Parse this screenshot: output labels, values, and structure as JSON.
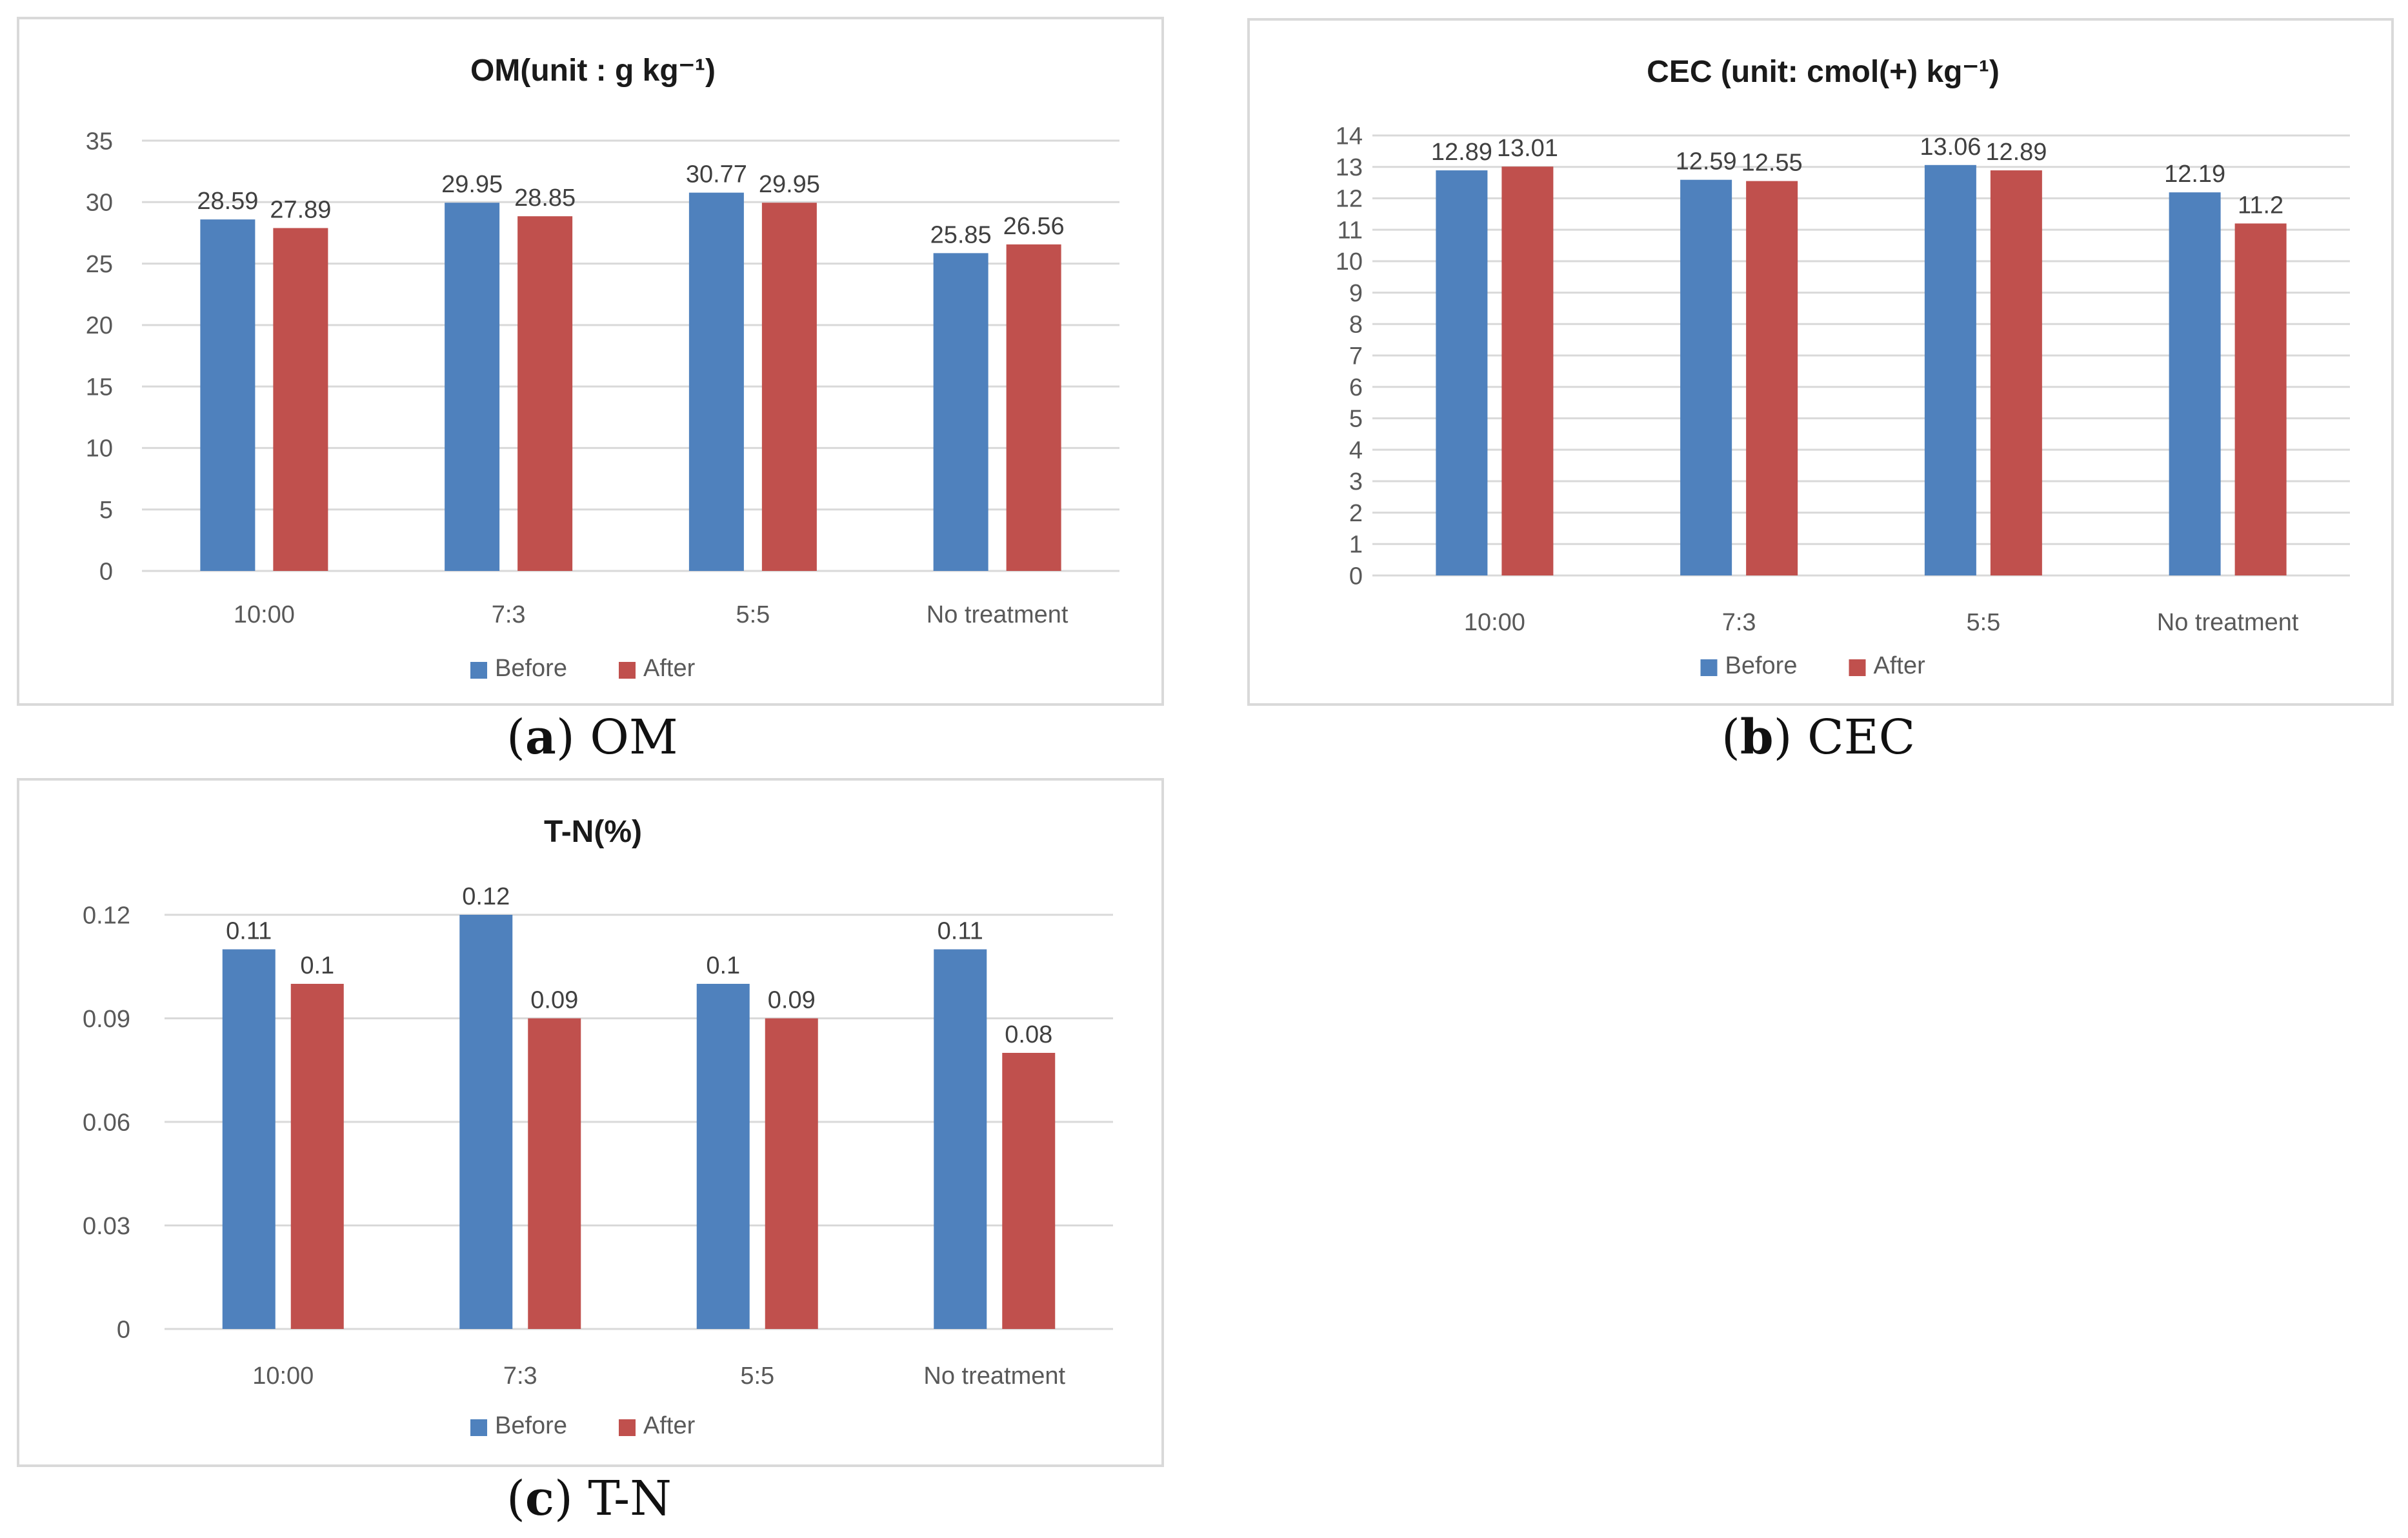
{
  "colors": {
    "before": "#4f81bd",
    "after": "#c0504d",
    "grid": "#d9d9d9",
    "axis_text": "#595959"
  },
  "chart_data": [
    {
      "id": "om",
      "type": "bar",
      "title": "OM(unit : g kg⁻¹)",
      "categories": [
        "10:00",
        "7:3",
        "5:5",
        "No treatment"
      ],
      "series": [
        {
          "name": "Before",
          "values": [
            28.59,
            29.95,
            30.77,
            25.85
          ]
        },
        {
          "name": "After",
          "values": [
            27.89,
            28.85,
            29.95,
            26.56
          ]
        }
      ],
      "data_labels": [
        [
          "28.59",
          "29.95",
          "30.77",
          "25.85"
        ],
        [
          "27.89",
          "28.85",
          "29.95",
          "26.56"
        ]
      ],
      "yticks": [
        "0",
        "5",
        "10",
        "15",
        "20",
        "25",
        "30",
        "35"
      ],
      "ylim": [
        0,
        35
      ],
      "grid": true,
      "legend": "bottom"
    },
    {
      "id": "cec",
      "type": "bar",
      "title": "CEC (unit: cmol(+) kg⁻¹)",
      "categories": [
        "10:00",
        "7:3",
        "5:5",
        "No treatment"
      ],
      "series": [
        {
          "name": "Before",
          "values": [
            12.89,
            12.59,
            13.06,
            12.19
          ]
        },
        {
          "name": "After",
          "values": [
            13.01,
            12.55,
            12.89,
            11.2
          ]
        }
      ],
      "data_labels": [
        [
          "12.89",
          "12.59",
          "13.06",
          "12.19"
        ],
        [
          "13.01",
          "12.55",
          "12.89",
          "11.2"
        ]
      ],
      "yticks": [
        "0",
        "1",
        "2",
        "3",
        "4",
        "5",
        "6",
        "7",
        "8",
        "9",
        "10",
        "11",
        "12",
        "13",
        "14"
      ],
      "ylim": [
        0,
        14
      ],
      "grid": true,
      "legend": "bottom"
    },
    {
      "id": "tn",
      "type": "bar",
      "title": "T-N(%)",
      "categories": [
        "10:00",
        "7:3",
        "5:5",
        "No treatment"
      ],
      "series": [
        {
          "name": "Before",
          "values": [
            0.11,
            0.12,
            0.1,
            0.11
          ]
        },
        {
          "name": "After",
          "values": [
            0.1,
            0.09,
            0.09,
            0.08
          ]
        }
      ],
      "data_labels": [
        [
          "0.11",
          "0.12",
          "0.1",
          "0.11"
        ],
        [
          "0.1",
          "0.09",
          "0.09",
          "0.08"
        ]
      ],
      "yticks": [
        "0",
        "0.03",
        "0.06",
        "0.09",
        "0.12"
      ],
      "ylim": [
        0,
        0.12
      ],
      "grid": true,
      "legend": "bottom"
    }
  ],
  "captions": [
    {
      "letter": "a",
      "text": "OM"
    },
    {
      "letter": "b",
      "text": "CEC"
    },
    {
      "letter": "c",
      "text": "T-N"
    }
  ]
}
